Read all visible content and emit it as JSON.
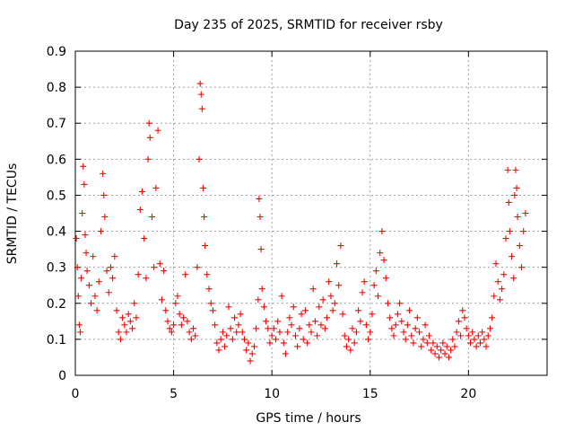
{
  "chart_data": {
    "type": "scatter",
    "title": "Day 235 of 2025, SRMTID for receiver rsby",
    "xlabel": "GPS time / hours",
    "ylabel": "SRMTID / TECUs",
    "xlim": [
      0,
      24
    ],
    "ylim": [
      0,
      0.9
    ],
    "xticks": [
      "0",
      "5",
      "10",
      "15",
      "20"
    ],
    "yticks": [
      "0",
      "0.1",
      "0.2",
      "0.3",
      "0.4",
      "0.5",
      "0.6",
      "0.7",
      "0.8",
      "0.9"
    ],
    "grid": true,
    "marker": "+",
    "series_color": "#ff0000",
    "series": [
      {
        "name": "SRMTID",
        "points": [
          [
            0.05,
            0.38
          ],
          [
            0.1,
            0.3
          ],
          [
            0.15,
            0.22
          ],
          [
            0.2,
            0.14
          ],
          [
            0.25,
            0.12
          ],
          [
            0.3,
            0.27
          ],
          [
            0.35,
            0.45
          ],
          [
            0.4,
            0.58
          ],
          [
            0.45,
            0.53
          ],
          [
            0.5,
            0.39
          ],
          [
            0.55,
            0.34
          ],
          [
            0.6,
            0.29
          ],
          [
            0.7,
            0.25
          ],
          [
            0.8,
            0.2
          ],
          [
            0.9,
            0.33
          ],
          [
            1.0,
            0.22
          ],
          [
            1.1,
            0.18
          ],
          [
            1.2,
            0.26
          ],
          [
            1.3,
            0.4
          ],
          [
            1.4,
            0.56
          ],
          [
            1.45,
            0.5
          ],
          [
            1.5,
            0.44
          ],
          [
            1.6,
            0.29
          ],
          [
            1.7,
            0.23
          ],
          [
            1.8,
            0.3
          ],
          [
            1.9,
            0.27
          ],
          [
            2.0,
            0.33
          ],
          [
            2.1,
            0.18
          ],
          [
            2.2,
            0.12
          ],
          [
            2.3,
            0.1
          ],
          [
            2.4,
            0.16
          ],
          [
            2.5,
            0.14
          ],
          [
            2.6,
            0.12
          ],
          [
            2.7,
            0.17
          ],
          [
            2.8,
            0.15
          ],
          [
            2.9,
            0.13
          ],
          [
            3.0,
            0.2
          ],
          [
            3.1,
            0.16
          ],
          [
            3.2,
            0.28
          ],
          [
            3.3,
            0.46
          ],
          [
            3.4,
            0.51
          ],
          [
            3.5,
            0.38
          ],
          [
            3.6,
            0.27
          ],
          [
            3.7,
            0.6
          ],
          [
            3.75,
            0.7
          ],
          [
            3.8,
            0.66
          ],
          [
            3.9,
            0.44
          ],
          [
            4.0,
            0.3
          ],
          [
            4.1,
            0.52
          ],
          [
            4.2,
            0.68
          ],
          [
            4.3,
            0.31
          ],
          [
            4.4,
            0.21
          ],
          [
            4.5,
            0.29
          ],
          [
            4.6,
            0.18
          ],
          [
            4.7,
            0.15
          ],
          [
            4.8,
            0.13
          ],
          [
            4.9,
            0.12
          ],
          [
            5.0,
            0.14
          ],
          [
            5.1,
            0.2
          ],
          [
            5.2,
            0.22
          ],
          [
            5.3,
            0.17
          ],
          [
            5.4,
            0.14
          ],
          [
            5.5,
            0.16
          ],
          [
            5.6,
            0.28
          ],
          [
            5.7,
            0.15
          ],
          [
            5.8,
            0.12
          ],
          [
            5.9,
            0.1
          ],
          [
            6.0,
            0.13
          ],
          [
            6.1,
            0.11
          ],
          [
            6.2,
            0.3
          ],
          [
            6.3,
            0.6
          ],
          [
            6.35,
            0.81
          ],
          [
            6.4,
            0.78
          ],
          [
            6.45,
            0.74
          ],
          [
            6.5,
            0.52
          ],
          [
            6.55,
            0.44
          ],
          [
            6.6,
            0.36
          ],
          [
            6.7,
            0.28
          ],
          [
            6.8,
            0.24
          ],
          [
            6.9,
            0.2
          ],
          [
            7.0,
            0.18
          ],
          [
            7.1,
            0.14
          ],
          [
            7.2,
            0.09
          ],
          [
            7.3,
            0.07
          ],
          [
            7.4,
            0.1
          ],
          [
            7.5,
            0.12
          ],
          [
            7.6,
            0.08
          ],
          [
            7.7,
            0.11
          ],
          [
            7.8,
            0.19
          ],
          [
            7.9,
            0.13
          ],
          [
            8.0,
            0.1
          ],
          [
            8.1,
            0.16
          ],
          [
            8.2,
            0.12
          ],
          [
            8.3,
            0.14
          ],
          [
            8.4,
            0.17
          ],
          [
            8.5,
            0.12
          ],
          [
            8.6,
            0.1
          ],
          [
            8.7,
            0.07
          ],
          [
            8.8,
            0.09
          ],
          [
            8.9,
            0.04
          ],
          [
            9.0,
            0.06
          ],
          [
            9.1,
            0.08
          ],
          [
            9.2,
            0.13
          ],
          [
            9.3,
            0.21
          ],
          [
            9.35,
            0.49
          ],
          [
            9.4,
            0.44
          ],
          [
            9.45,
            0.35
          ],
          [
            9.5,
            0.24
          ],
          [
            9.6,
            0.19
          ],
          [
            9.7,
            0.15
          ],
          [
            9.8,
            0.13
          ],
          [
            9.9,
            0.09
          ],
          [
            10.0,
            0.11
          ],
          [
            10.1,
            0.13
          ],
          [
            10.2,
            0.1
          ],
          [
            10.3,
            0.15
          ],
          [
            10.4,
            0.12
          ],
          [
            10.5,
            0.22
          ],
          [
            10.6,
            0.09
          ],
          [
            10.7,
            0.06
          ],
          [
            10.8,
            0.12
          ],
          [
            10.9,
            0.16
          ],
          [
            11.0,
            0.14
          ],
          [
            11.1,
            0.19
          ],
          [
            11.2,
            0.11
          ],
          [
            11.3,
            0.08
          ],
          [
            11.4,
            0.13
          ],
          [
            11.5,
            0.17
          ],
          [
            11.6,
            0.1
          ],
          [
            11.7,
            0.18
          ],
          [
            11.8,
            0.09
          ],
          [
            11.9,
            0.14
          ],
          [
            12.0,
            0.12
          ],
          [
            12.1,
            0.24
          ],
          [
            12.2,
            0.15
          ],
          [
            12.3,
            0.11
          ],
          [
            12.4,
            0.19
          ],
          [
            12.5,
            0.14
          ],
          [
            12.6,
            0.21
          ],
          [
            12.7,
            0.13
          ],
          [
            12.8,
            0.16
          ],
          [
            12.9,
            0.26
          ],
          [
            13.0,
            0.22
          ],
          [
            13.1,
            0.18
          ],
          [
            13.2,
            0.2
          ],
          [
            13.3,
            0.31
          ],
          [
            13.4,
            0.25
          ],
          [
            13.5,
            0.36
          ],
          [
            13.6,
            0.17
          ],
          [
            13.7,
            0.11
          ],
          [
            13.8,
            0.08
          ],
          [
            13.9,
            0.1
          ],
          [
            14.0,
            0.07
          ],
          [
            14.1,
            0.13
          ],
          [
            14.2,
            0.09
          ],
          [
            14.3,
            0.12
          ],
          [
            14.4,
            0.18
          ],
          [
            14.5,
            0.15
          ],
          [
            14.6,
            0.23
          ],
          [
            14.7,
            0.26
          ],
          [
            14.8,
            0.14
          ],
          [
            14.9,
            0.1
          ],
          [
            15.0,
            0.12
          ],
          [
            15.1,
            0.17
          ],
          [
            15.2,
            0.25
          ],
          [
            15.3,
            0.29
          ],
          [
            15.4,
            0.22
          ],
          [
            15.5,
            0.34
          ],
          [
            15.6,
            0.4
          ],
          [
            15.7,
            0.32
          ],
          [
            15.8,
            0.27
          ],
          [
            15.9,
            0.2
          ],
          [
            16.0,
            0.16
          ],
          [
            16.1,
            0.13
          ],
          [
            16.2,
            0.11
          ],
          [
            16.3,
            0.14
          ],
          [
            16.4,
            0.17
          ],
          [
            16.5,
            0.2
          ],
          [
            16.6,
            0.15
          ],
          [
            16.7,
            0.12
          ],
          [
            16.8,
            0.1
          ],
          [
            16.9,
            0.14
          ],
          [
            17.0,
            0.18
          ],
          [
            17.1,
            0.11
          ],
          [
            17.2,
            0.09
          ],
          [
            17.3,
            0.13
          ],
          [
            17.4,
            0.16
          ],
          [
            17.5,
            0.12
          ],
          [
            17.6,
            0.08
          ],
          [
            17.7,
            0.1
          ],
          [
            17.8,
            0.14
          ],
          [
            17.9,
            0.09
          ],
          [
            18.0,
            0.11
          ],
          [
            18.1,
            0.07
          ],
          [
            18.2,
            0.09
          ],
          [
            18.3,
            0.06
          ],
          [
            18.4,
            0.08
          ],
          [
            18.5,
            0.05
          ],
          [
            18.6,
            0.07
          ],
          [
            18.7,
            0.09
          ],
          [
            18.8,
            0.06
          ],
          [
            18.9,
            0.08
          ],
          [
            19.0,
            0.05
          ],
          [
            19.1,
            0.07
          ],
          [
            19.2,
            0.1
          ],
          [
            19.3,
            0.08
          ],
          [
            19.4,
            0.12
          ],
          [
            19.5,
            0.15
          ],
          [
            19.6,
            0.11
          ],
          [
            19.7,
            0.18
          ],
          [
            19.8,
            0.16
          ],
          [
            19.9,
            0.13
          ],
          [
            20.0,
            0.11
          ],
          [
            20.1,
            0.09
          ],
          [
            20.2,
            0.12
          ],
          [
            20.3,
            0.1
          ],
          [
            20.4,
            0.08
          ],
          [
            20.5,
            0.11
          ],
          [
            20.6,
            0.09
          ],
          [
            20.7,
            0.12
          ],
          [
            20.8,
            0.1
          ],
          [
            20.9,
            0.08
          ],
          [
            21.0,
            0.11
          ],
          [
            21.1,
            0.13
          ],
          [
            21.2,
            0.16
          ],
          [
            21.3,
            0.22
          ],
          [
            21.4,
            0.31
          ],
          [
            21.5,
            0.26
          ],
          [
            21.6,
            0.21
          ],
          [
            21.7,
            0.24
          ],
          [
            21.8,
            0.28
          ],
          [
            21.9,
            0.38
          ],
          [
            22.0,
            0.57
          ],
          [
            22.05,
            0.48
          ],
          [
            22.1,
            0.4
          ],
          [
            22.2,
            0.33
          ],
          [
            22.3,
            0.27
          ],
          [
            22.35,
            0.5
          ],
          [
            22.4,
            0.57
          ],
          [
            22.45,
            0.52
          ],
          [
            22.5,
            0.44
          ],
          [
            22.6,
            0.36
          ],
          [
            22.7,
            0.3
          ],
          [
            22.8,
            0.4
          ],
          [
            22.9,
            0.45
          ]
        ]
      }
    ]
  }
}
